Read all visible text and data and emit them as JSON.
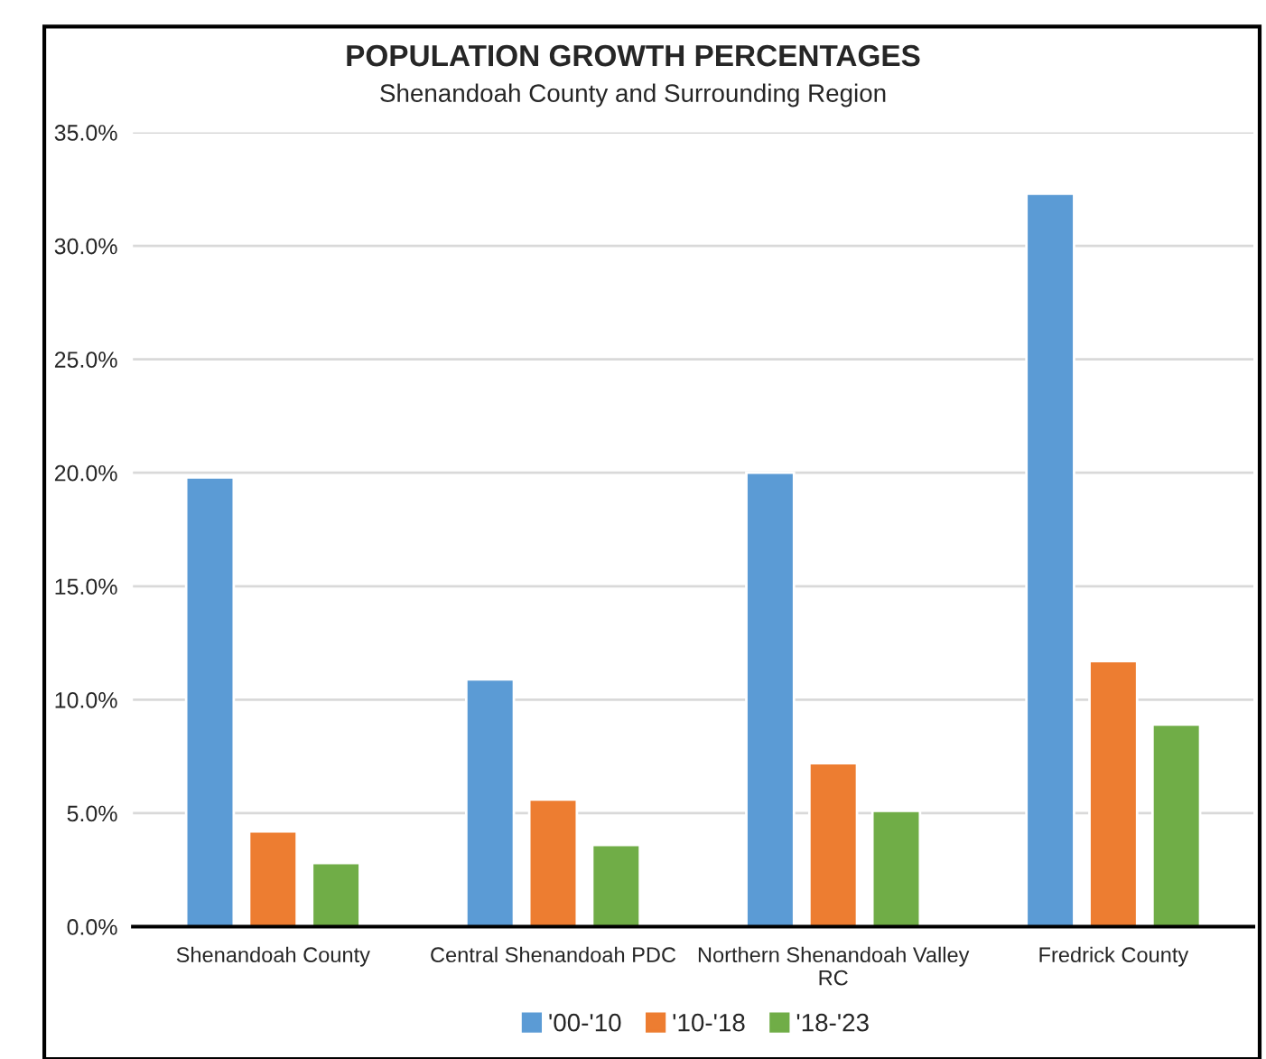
{
  "chart_data": {
    "type": "bar",
    "title": "POPULATION GROWTH PERCENTAGES",
    "subtitle": "Shenandoah County and Surrounding Region",
    "categories": [
      "Shenandoah County",
      "Central Shenandoah PDC",
      "Northern Shenandoah Valley\nRC",
      "Fredrick County"
    ],
    "series": [
      {
        "name": "'00-'10",
        "color": "#5b9bd5",
        "values": [
          19.8,
          10.9,
          20.0,
          32.3
        ]
      },
      {
        "name": "'10-'18",
        "color": "#ed7d31",
        "values": [
          4.2,
          5.6,
          7.2,
          11.7
        ]
      },
      {
        "name": "'18-'23",
        "color": "#70ad47",
        "values": [
          2.8,
          3.6,
          5.1,
          8.9
        ]
      }
    ],
    "ylim": [
      0,
      35
    ],
    "yticks": [
      {
        "value": 0,
        "label": "0.0%"
      },
      {
        "value": 5,
        "label": "5.0%"
      },
      {
        "value": 10,
        "label": "10.0%"
      },
      {
        "value": 15,
        "label": "15.0%"
      },
      {
        "value": 20,
        "label": "20.0%"
      },
      {
        "value": 25,
        "label": "25.0%"
      },
      {
        "value": 30,
        "label": "30.0%"
      },
      {
        "value": 35,
        "label": "35.0%"
      }
    ],
    "grid": "y",
    "legend": "bottom"
  }
}
